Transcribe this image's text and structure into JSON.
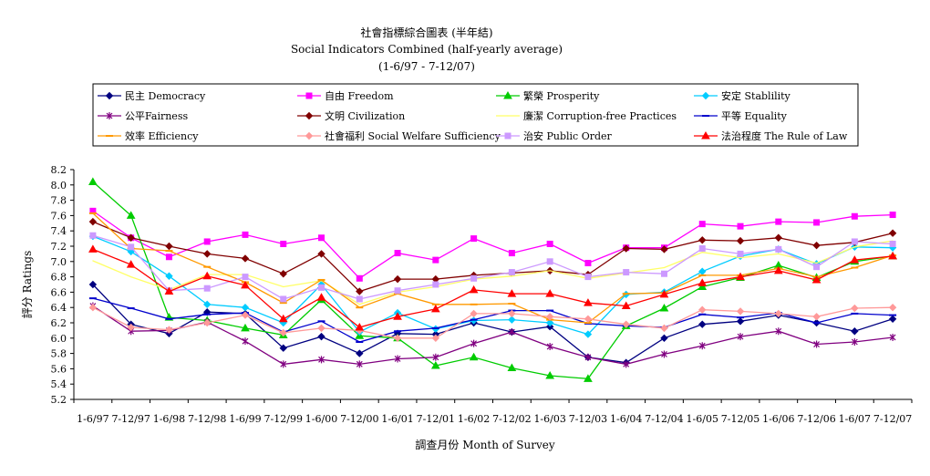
{
  "chart_data": {
    "type": "line",
    "title": "社會指標綜合圖表 (半年結)",
    "subtitle": "Social Indicators Combined (half-yearly average)",
    "subtitle2": "(1-6/97 - 7-12/07)",
    "xlabel": "調查月份 Month of Survey",
    "ylabel": "評分 Ratings",
    "ylim": [
      5.2,
      8.2
    ],
    "yticks": [
      "5.2",
      "5.4",
      "5.6",
      "5.8",
      "6.0",
      "6.2",
      "6.4",
      "6.6",
      "6.8",
      "7.0",
      "7.2",
      "7.4",
      "7.6",
      "7.8",
      "8.0",
      "8.2"
    ],
    "legend_position": "top",
    "grid": false,
    "categories": [
      "1-6/97",
      "7-12/97",
      "1-6/98",
      "7-12/98",
      "1-6/99",
      "7-12/99",
      "1-6/00",
      "7-12/00",
      "1-6/01",
      "7-12/01",
      "1-6/02",
      "7-12/02",
      "1-6/03",
      "7-12/03",
      "1-6/04",
      "7-12/04",
      "1-6/05",
      "7-12/05",
      "1-6/06",
      "7-12/06",
      "1-6/07",
      "7-12/07"
    ],
    "series": [
      {
        "name": "民主 Democracy",
        "color": "#000080",
        "marker": "diamond",
        "values": [
          6.7,
          6.18,
          6.06,
          6.34,
          6.32,
          5.87,
          6.02,
          5.8,
          6.06,
          6.05,
          6.2,
          6.08,
          6.15,
          5.75,
          5.68,
          6.0,
          6.18,
          6.22,
          6.3,
          6.2,
          6.09,
          6.25
        ]
      },
      {
        "name": "自由 Freedom",
        "color": "#FF00FF",
        "marker": "square",
        "values": [
          7.66,
          7.31,
          7.06,
          7.26,
          7.35,
          7.23,
          7.31,
          6.78,
          7.11,
          7.02,
          7.3,
          7.11,
          7.23,
          6.98,
          7.18,
          7.18,
          7.49,
          7.46,
          7.52,
          7.51,
          7.59,
          7.61
        ]
      },
      {
        "name": "繁榮 Prosperity",
        "color": "#00CC00",
        "marker": "triangle",
        "values": [
          8.04,
          7.6,
          6.27,
          6.23,
          6.13,
          6.04,
          6.5,
          6.03,
          6.0,
          5.64,
          5.75,
          5.61,
          5.51,
          5.47,
          6.16,
          6.39,
          6.67,
          6.79,
          6.95,
          6.79,
          7.0,
          7.07
        ]
      },
      {
        "name": "安定 Stablility",
        "color": "#00CCFF",
        "marker": "diamond",
        "values": [
          7.33,
          7.13,
          6.81,
          6.44,
          6.4,
          6.2,
          6.7,
          6.08,
          6.33,
          6.12,
          6.23,
          6.24,
          6.2,
          6.05,
          6.57,
          6.6,
          6.87,
          7.07,
          7.16,
          6.97,
          7.19,
          7.18
        ]
      },
      {
        "name": "公平Fairness",
        "color": "#800080",
        "marker": "star",
        "values": [
          6.42,
          6.09,
          6.1,
          6.21,
          5.96,
          5.66,
          5.72,
          5.66,
          5.73,
          5.75,
          5.93,
          6.08,
          5.89,
          5.75,
          5.66,
          5.79,
          5.9,
          6.02,
          6.09,
          5.92,
          5.95,
          6.01
        ]
      },
      {
        "name": "文明 Civilization",
        "color": "#800000",
        "marker": "diamond",
        "values": [
          7.52,
          7.31,
          7.2,
          7.1,
          7.04,
          6.84,
          7.1,
          6.61,
          6.77,
          6.77,
          6.82,
          6.85,
          6.88,
          6.83,
          7.17,
          7.16,
          7.28,
          7.27,
          7.31,
          7.21,
          7.25,
          7.37
        ]
      },
      {
        "name": "廉潔 Corruption-free Practices",
        "color": "#FFFF66",
        "marker": "none",
        "values": [
          7.01,
          6.8,
          6.63,
          6.83,
          6.83,
          6.67,
          6.75,
          6.44,
          6.6,
          6.67,
          6.77,
          6.81,
          6.88,
          6.78,
          6.85,
          6.92,
          7.12,
          7.05,
          7.1,
          6.98,
          7.19,
          7.27
        ]
      },
      {
        "name": "平等 Equality",
        "color": "#0000CC",
        "marker": "dash",
        "values": [
          6.52,
          6.39,
          6.25,
          6.31,
          6.33,
          6.08,
          6.22,
          5.95,
          6.09,
          6.13,
          6.24,
          6.36,
          6.36,
          6.19,
          6.16,
          6.14,
          6.31,
          6.27,
          6.33,
          6.2,
          6.32,
          6.3
        ]
      },
      {
        "name": "效率 Efficiency",
        "color": "#FF9900",
        "marker": "dash",
        "values": [
          7.63,
          7.17,
          7.14,
          6.93,
          6.73,
          6.46,
          6.76,
          6.4,
          6.58,
          6.44,
          6.44,
          6.45,
          6.24,
          6.2,
          6.58,
          6.59,
          6.82,
          6.82,
          6.91,
          6.8,
          6.92,
          7.08
        ]
      },
      {
        "name": "社會福利 Social Welfare Sufficiency",
        "color": "#FF9999",
        "marker": "diamond",
        "values": [
          6.4,
          6.14,
          6.11,
          6.2,
          6.3,
          6.07,
          6.13,
          6.1,
          6.0,
          6.0,
          6.32,
          6.32,
          6.28,
          6.25,
          6.18,
          6.13,
          6.37,
          6.35,
          6.32,
          6.28,
          6.39,
          6.4
        ]
      },
      {
        "name": "治安 Public Order",
        "color": "#CC99FF",
        "marker": "square",
        "values": [
          7.34,
          7.19,
          6.62,
          6.65,
          6.8,
          6.51,
          6.66,
          6.51,
          6.62,
          6.7,
          6.78,
          6.86,
          7.0,
          6.8,
          6.86,
          6.84,
          7.17,
          7.1,
          7.16,
          6.93,
          7.26,
          7.23
        ]
      },
      {
        "name": "法治程度 The Rule of Law",
        "color": "#FF0000",
        "marker": "triangle",
        "values": [
          7.16,
          6.96,
          6.61,
          6.81,
          6.69,
          6.25,
          6.53,
          6.14,
          6.28,
          6.38,
          6.63,
          6.58,
          6.58,
          6.46,
          6.42,
          6.57,
          6.72,
          6.8,
          6.88,
          6.76,
          7.02,
          7.07
        ]
      }
    ]
  }
}
